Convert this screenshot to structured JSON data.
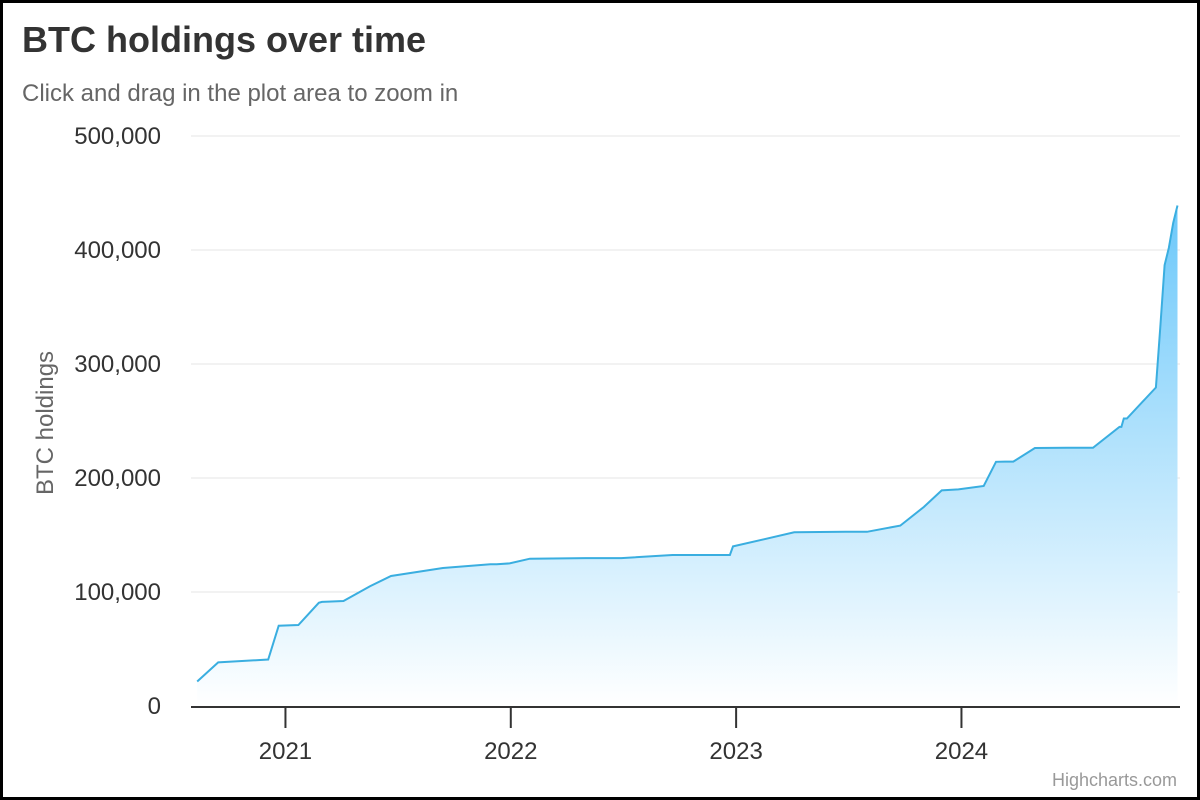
{
  "chart_data": {
    "type": "area",
    "title": "BTC holdings over time",
    "subtitle": "Click and drag in the plot area to zoom in",
    "xlabel": "",
    "ylabel": "BTC holdings",
    "ylim": [
      0,
      500000
    ],
    "y_ticks": [
      0,
      100000,
      200000,
      300000,
      400000,
      500000
    ],
    "y_tick_labels": [
      "0",
      "100,000",
      "200,000",
      "300,000",
      "400,000",
      "500,000"
    ],
    "x_ticks": [
      "2021-01-01",
      "2022-01-01",
      "2023-01-01",
      "2024-01-01"
    ],
    "x_tick_labels": [
      "2021",
      "2022",
      "2023",
      "2024"
    ],
    "x_range": [
      "2020-08-01",
      "2024-12-20"
    ],
    "grid": true,
    "legend": "none",
    "colors": {
      "line": "#3aaee0",
      "fill_top": "#6cc8fa",
      "fill_bottom": "#ffffff",
      "grid": "#e6e6e6",
      "axis": "#333333"
    },
    "series": [
      {
        "x": [
          "2020-08-11",
          "2020-09-14",
          "2020-12-04",
          "2020-12-21",
          "2021-01-22",
          "2021-02-24",
          "2021-03-01",
          "2021-03-12",
          "2021-04-05",
          "2021-05-18",
          "2021-06-21",
          "2021-09-13",
          "2021-11-29",
          "2021-12-09",
          "2021-12-30",
          "2022-02-01",
          "2022-05-02",
          "2022-06-29",
          "2022-09-20",
          "2022-12-22",
          "2022-12-27",
          "2023-04-05",
          "2023-06-27",
          "2023-08-01",
          "2023-09-24",
          "2023-11-01",
          "2023-11-30",
          "2023-12-27",
          "2024-02-06",
          "2024-02-26",
          "2024-03-11",
          "2024-03-19",
          "2024-03-25",
          "2024-04-29",
          "2024-06-20",
          "2024-08-01",
          "2024-09-13",
          "2024-09-16",
          "2024-09-20",
          "2024-09-25",
          "2024-11-11",
          "2024-11-18",
          "2024-11-25",
          "2024-12-02",
          "2024-12-09",
          "2024-12-16"
        ],
        "values": [
          21454,
          38250,
          40824,
          70470,
          71079,
          90531,
          91326,
          91579,
          92079,
          105085,
          114042,
          121044,
          124391,
          124391,
          125051,
          129218,
          129699,
          129699,
          132500,
          132500,
          140000,
          152333,
          152800,
          152800,
          158245,
          174530,
          189150,
          190000,
          193000,
          214246,
          214400,
          214400,
          214400,
          226331,
          226500,
          226500,
          244800,
          244800,
          252220,
          252220,
          279420,
          331200,
          386700,
          402100,
          423650,
          439000
        ],
        "_note_unused": ""
      }
    ]
  }
}
